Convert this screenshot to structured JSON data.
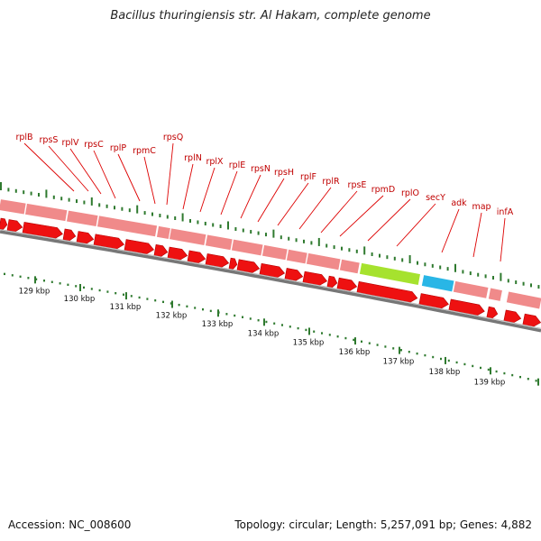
{
  "title": "Bacillus thuringiensis str. Al Hakam, complete genome",
  "footer": {
    "accession": "Accession: NC_008600",
    "summary": "Topology: circular; Length: 5,257,091 bp; Genes: 4,882"
  },
  "ticks": [
    "129 kbp",
    "130 kbp",
    "131 kbp",
    "132 kbp",
    "133 kbp",
    "134 kbp",
    "135 kbp",
    "136 kbp",
    "137 kbp",
    "138 kbp",
    "139 kbp"
  ],
  "gene_labels": [
    "rplB",
    "rpsS",
    "rplV",
    "rpsC",
    "rplP",
    "rpmC",
    "rpsQ",
    "rplN",
    "rplX",
    "rplE",
    "rpsN",
    "rpsH",
    "rplF",
    "rplR",
    "rpsE",
    "rpmD",
    "rplO",
    "secY",
    "adk",
    "map",
    "infA"
  ],
  "colors": {
    "cds_arrow": "#ee1111",
    "gene_bar": "#f08a8a",
    "highlight_green": "#a6e22e",
    "highlight_blue": "#29b6e6",
    "backbone": "#777777",
    "tick": "#2f7a2f",
    "label_line": "#dd0000"
  }
}
